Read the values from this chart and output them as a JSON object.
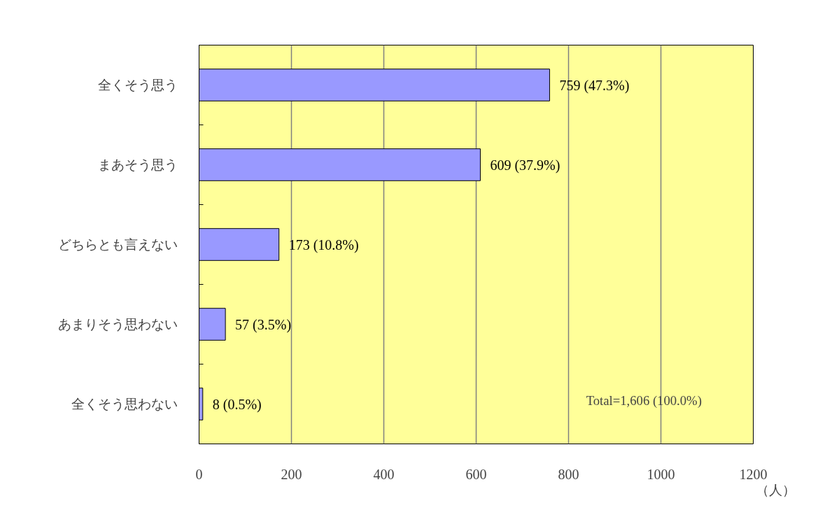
{
  "chart_data": {
    "type": "bar",
    "orientation": "horizontal",
    "categories": [
      "全くそう思う",
      "まあそう思う",
      "どちらとも言えない",
      "あまりそう思わない",
      "全くそう思わない"
    ],
    "values": [
      759,
      609,
      173,
      57,
      8
    ],
    "color": "#9999ff",
    "value_labels": [
      "759 (47.3%)",
      "609 (37.9%)",
      "173 (10.8%)",
      "57 (3.5%)",
      "8 (0.5%)"
    ],
    "xlim": [
      0,
      1200
    ],
    "xticks": [
      0,
      200,
      400,
      600,
      800,
      1000,
      1200
    ],
    "xlabel": "（人）",
    "annotations": [
      "Total=1,606 (100.0%)"
    ],
    "grid": "x"
  }
}
